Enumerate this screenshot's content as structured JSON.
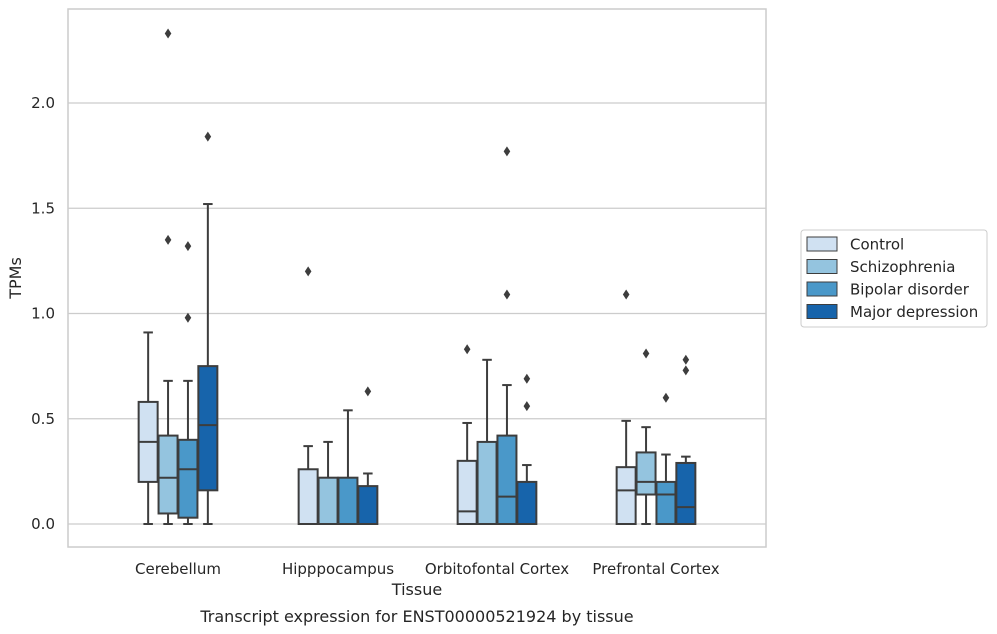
{
  "caption": "Transcript expression for ENST00000521924 by tissue",
  "chart_data": {
    "type": "boxplot",
    "title": "",
    "xlabel": "Tissue",
    "ylabel": "TPMs",
    "ylim": [
      -0.11,
      2.46
    ],
    "yticks": [
      0.0,
      0.5,
      1.0,
      1.5,
      2.0
    ],
    "ytick_labels": [
      "0.0",
      "0.5",
      "1.0",
      "1.5",
      "2.0"
    ],
    "grid": "horizontal",
    "legend_position": "right",
    "categories": [
      "Cerebellum",
      "Hipppocampus",
      "Orbitofontal Cortex",
      "Prefrontal Cortex"
    ],
    "series": [
      {
        "name": "Control",
        "color": "#d0e1f2",
        "boxes": [
          {
            "whislo": 0.0,
            "q1": 0.2,
            "med": 0.39,
            "q3": 0.58,
            "whishi": 0.91,
            "fliers": []
          },
          {
            "whislo": 0.0,
            "q1": 0.0,
            "med": 0.0,
            "q3": 0.26,
            "whishi": 0.37,
            "fliers": [
              1.2
            ]
          },
          {
            "whislo": 0.0,
            "q1": 0.0,
            "med": 0.06,
            "q3": 0.3,
            "whishi": 0.48,
            "fliers": [
              0.83
            ]
          },
          {
            "whislo": 0.0,
            "q1": 0.0,
            "med": 0.16,
            "q3": 0.27,
            "whishi": 0.49,
            "fliers": [
              1.09
            ]
          }
        ]
      },
      {
        "name": "Schizophrenia",
        "color": "#94c4df",
        "boxes": [
          {
            "whislo": 0.0,
            "q1": 0.05,
            "med": 0.22,
            "q3": 0.42,
            "whishi": 0.68,
            "fliers": [
              1.35,
              2.33
            ]
          },
          {
            "whislo": 0.0,
            "q1": 0.0,
            "med": 0.0,
            "q3": 0.22,
            "whishi": 0.39,
            "fliers": []
          },
          {
            "whislo": 0.0,
            "q1": 0.0,
            "med": 0.0,
            "q3": 0.39,
            "whishi": 0.78,
            "fliers": []
          },
          {
            "whislo": 0.0,
            "q1": 0.14,
            "med": 0.2,
            "q3": 0.34,
            "whishi": 0.46,
            "fliers": [
              0.81
            ]
          }
        ]
      },
      {
        "name": "Bipolar disorder",
        "color": "#4a98c9",
        "boxes": [
          {
            "whislo": 0.0,
            "q1": 0.03,
            "med": 0.26,
            "q3": 0.4,
            "whishi": 0.68,
            "fliers": [
              0.98,
              1.32
            ]
          },
          {
            "whislo": 0.0,
            "q1": 0.0,
            "med": 0.0,
            "q3": 0.22,
            "whishi": 0.54,
            "fliers": []
          },
          {
            "whislo": 0.0,
            "q1": 0.0,
            "med": 0.13,
            "q3": 0.42,
            "whishi": 0.66,
            "fliers": [
              1.09,
              1.77
            ]
          },
          {
            "whislo": 0.0,
            "q1": 0.0,
            "med": 0.14,
            "q3": 0.2,
            "whishi": 0.33,
            "fliers": [
              0.6
            ]
          }
        ]
      },
      {
        "name": "Major depression",
        "color": "#1764ab",
        "boxes": [
          {
            "whislo": 0.0,
            "q1": 0.16,
            "med": 0.47,
            "q3": 0.75,
            "whishi": 1.52,
            "fliers": [
              1.84
            ]
          },
          {
            "whislo": 0.0,
            "q1": 0.0,
            "med": 0.0,
            "q3": 0.18,
            "whishi": 0.24,
            "fliers": [
              0.63
            ]
          },
          {
            "whislo": 0.0,
            "q1": 0.0,
            "med": 0.0,
            "q3": 0.2,
            "whishi": 0.28,
            "fliers": [
              0.56,
              0.69
            ]
          },
          {
            "whislo": 0.0,
            "q1": 0.0,
            "med": 0.08,
            "q3": 0.29,
            "whishi": 0.32,
            "fliers": [
              0.73,
              0.78
            ]
          }
        ]
      }
    ]
  }
}
